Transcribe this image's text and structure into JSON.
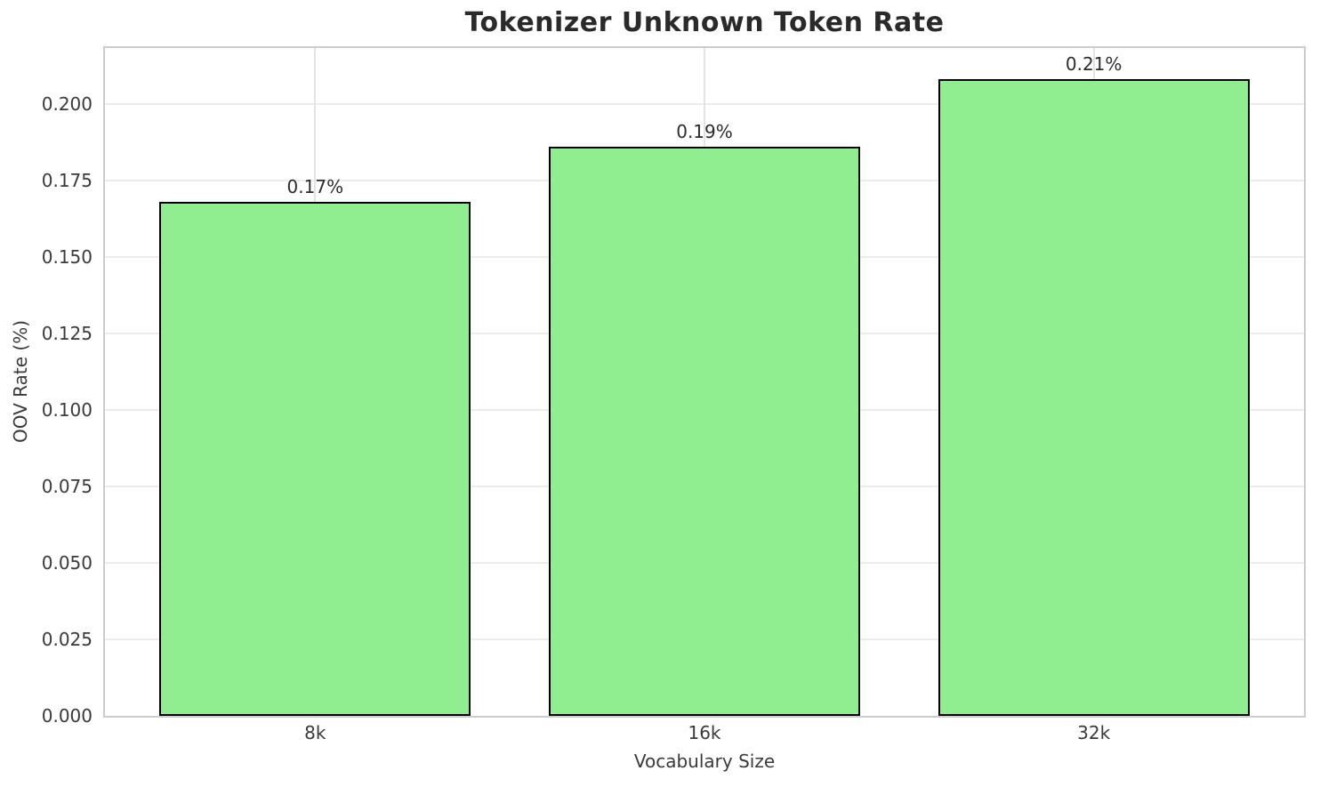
{
  "chart_data": {
    "type": "bar",
    "title": "Tokenizer Unknown Token Rate",
    "xlabel": "Vocabulary Size",
    "ylabel": "OOV Rate (%)",
    "categories": [
      "8k",
      "16k",
      "32k"
    ],
    "values": [
      0.168,
      0.186,
      0.208
    ],
    "bar_labels": [
      "0.17%",
      "0.19%",
      "0.21%"
    ],
    "ytick_values": [
      0.0,
      0.025,
      0.05,
      0.075,
      0.1,
      0.125,
      0.15,
      0.175,
      0.2
    ],
    "ytick_labels": [
      "0.000",
      "0.025",
      "0.050",
      "0.075",
      "0.100",
      "0.125",
      "0.150",
      "0.175",
      "0.200"
    ],
    "ylim": [
      0,
      0.2182
    ],
    "xlim": [
      -0.54,
      2.54
    ],
    "bar_width": 0.8,
    "grid": true,
    "legend": "none",
    "colors": {
      "bar_fill": "#90ee90",
      "bar_edge": "#000000",
      "grid_h": "#ededed",
      "grid_v": "#e4e4e4",
      "spine": "#cdcdcd",
      "title_text": "#2a2a2a",
      "tick_text": "#3a3a3a",
      "background": "#ffffff"
    }
  }
}
